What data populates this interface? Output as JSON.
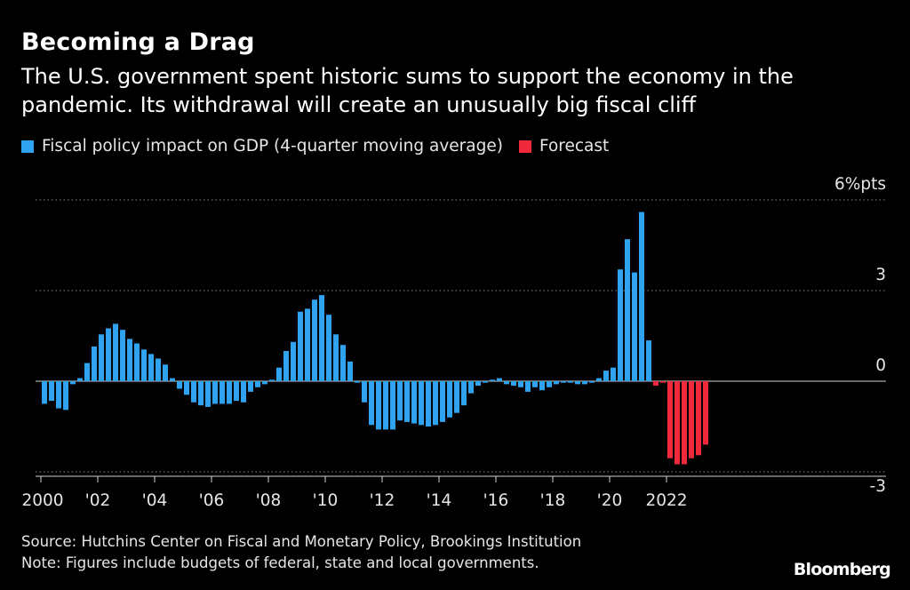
{
  "header": {
    "title": "Becoming a Drag",
    "subtitle": "The U.S. government spent historic sums to support the economy in the pandemic. Its withdrawal will create an unusually big fiscal cliff"
  },
  "legend": [
    {
      "label": "Fiscal policy impact on GDP (4-quarter moving average)",
      "color": "#2fa3f0"
    },
    {
      "label": "Forecast",
      "color": "#f0283c"
    }
  ],
  "footer": {
    "source": "Source: Hutchins Center on Fiscal and Monetary Policy, Brookings Institution",
    "note": "Note: Figures include budgets of federal, state and local governments."
  },
  "brand": "Bloomberg",
  "chart_data": {
    "type": "bar",
    "x_start": "2000-Q1",
    "x_frequency": "quarterly",
    "xlim": [
      "2000-Q1",
      "2023-Q2"
    ],
    "ylim": [
      -3.5,
      6
    ],
    "yticks": [
      {
        "value": 6,
        "label": "6%pts"
      },
      {
        "value": 3,
        "label": "3"
      },
      {
        "value": 0,
        "label": "0"
      },
      {
        "value": -3,
        "label": "-3"
      }
    ],
    "xticks": [
      "2000",
      "'02",
      "'04",
      "'06",
      "'08",
      "'10",
      "'12",
      "'14",
      "'16",
      "'18",
      "'20",
      "2022"
    ],
    "grid": "dotted horizontal",
    "series": [
      {
        "name": "Fiscal policy impact on GDP (4-quarter moving average)",
        "color": "#2fa3f0",
        "values": [
          -0.75,
          -0.65,
          -0.9,
          -0.95,
          -0.1,
          0.1,
          0.6,
          1.15,
          1.55,
          1.75,
          1.9,
          1.7,
          1.4,
          1.25,
          1.05,
          0.9,
          0.75,
          0.55,
          0.1,
          -0.25,
          -0.45,
          -0.7,
          -0.8,
          -0.85,
          -0.75,
          -0.75,
          -0.75,
          -0.65,
          -0.7,
          -0.35,
          -0.2,
          -0.1,
          0.05,
          0.45,
          1.0,
          1.3,
          2.3,
          2.4,
          2.7,
          2.85,
          2.2,
          1.55,
          1.2,
          0.65,
          -0.05,
          -0.7,
          -1.45,
          -1.6,
          -1.6,
          -1.6,
          -1.3,
          -1.35,
          -1.4,
          -1.45,
          -1.5,
          -1.45,
          -1.35,
          -1.2,
          -1.05,
          -0.8,
          -0.4,
          -0.15,
          -0.05,
          0.05,
          0.1,
          -0.1,
          -0.15,
          -0.2,
          -0.35,
          -0.2,
          -0.3,
          -0.2,
          -0.1,
          -0.05,
          -0.05,
          -0.1,
          -0.1,
          -0.05,
          0.1,
          0.35,
          0.45,
          3.7,
          4.7,
          3.6,
          5.6,
          1.35
        ]
      },
      {
        "name": "Forecast",
        "color": "#f0283c",
        "values": [
          -0.15,
          -0.05,
          -2.55,
          -2.75,
          -2.75,
          -2.55,
          -2.45,
          -2.1
        ]
      }
    ]
  }
}
